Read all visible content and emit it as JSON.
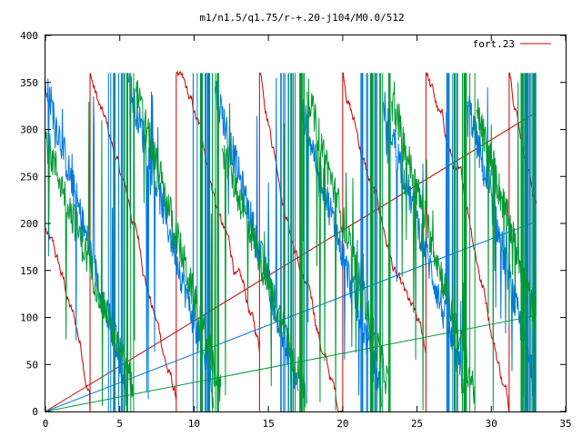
{
  "chart_data": {
    "type": "line",
    "title": "m1/n1.5/q1.75/r-+.20-j104/M0.0/512",
    "xlabel": "",
    "ylabel": "",
    "xlim": [
      0,
      35
    ],
    "ylim": [
      0,
      400
    ],
    "x_ticks": [
      0,
      5,
      10,
      15,
      20,
      25,
      30,
      35
    ],
    "y_ticks": [
      0,
      50,
      100,
      150,
      200,
      250,
      300,
      350,
      400
    ],
    "grid": false,
    "legend": "top-right",
    "x_end": 33,
    "series": [
      {
        "name": "fort.23",
        "color": "#cc0000",
        "kind": "sawtooth",
        "points": [
          [
            0,
            195
          ],
          [
            3,
            0
          ]
        ],
        "start": [
          0,
          195
        ],
        "drop_at": [
          3.0,
          8.8,
          14.4,
          20.0,
          25.6,
          31.2
        ],
        "slope_per_unit": -62,
        "ramp_to": [
          33,
          318
        ]
      },
      {
        "color": "#0077dd",
        "kind": "descending-noisy",
        "segments": [
          [
            0,
            350,
            5.5,
            20
          ],
          [
            5.6,
            350,
            11.3,
            20
          ],
          [
            11.4,
            345,
            17,
            20
          ],
          [
            17.1,
            330,
            22.6,
            20
          ],
          [
            22.7,
            330,
            28.3,
            20
          ],
          [
            28.4,
            330,
            33,
            20
          ]
        ],
        "ramp_to": [
          33,
          202
        ]
      },
      {
        "color": "#009933",
        "kind": "descending-noisy",
        "segments": [
          [
            0,
            290,
            6,
            20
          ],
          [
            6.1,
            340,
            11.8,
            20
          ],
          [
            11.9,
            280,
            17.5,
            20
          ],
          [
            17.6,
            340,
            23.2,
            20
          ],
          [
            23.3,
            330,
            28.9,
            20
          ],
          [
            29,
            320,
            33,
            100
          ]
        ],
        "ramp_to": [
          33,
          102
        ]
      }
    ]
  }
}
